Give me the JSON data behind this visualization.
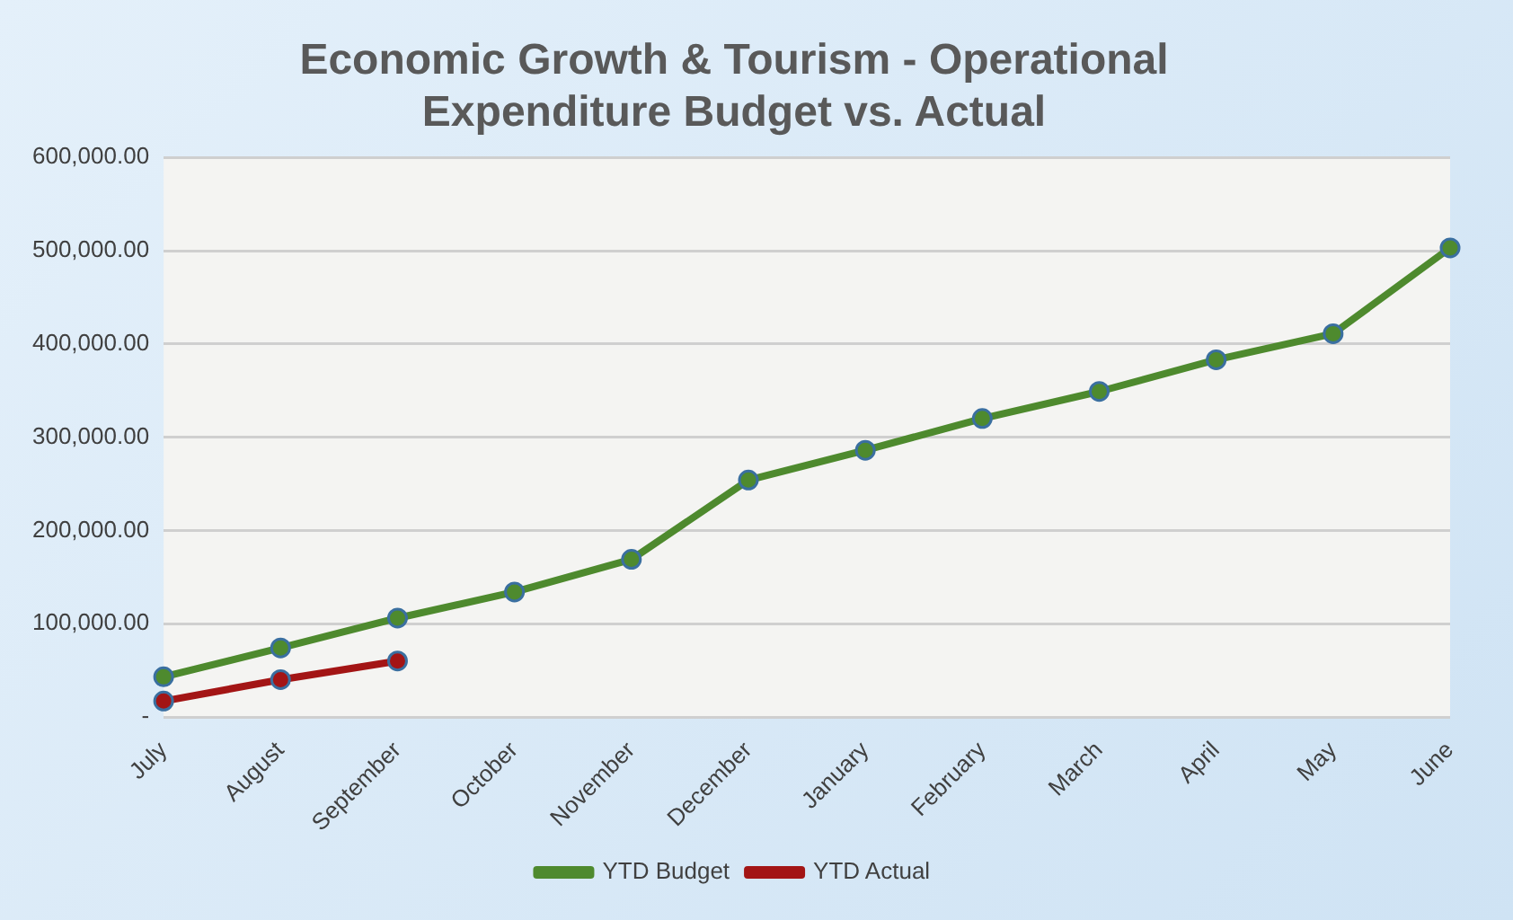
{
  "chart_data": {
    "type": "line",
    "title": "Economic Growth & Tourism - Operational Expenditure Budget vs. Actual",
    "categories": [
      "July",
      "August",
      "September",
      "October",
      "November",
      "December",
      "January",
      "February",
      "March",
      "April",
      "May",
      "June"
    ],
    "series": [
      {
        "name": "YTD Budget",
        "color": "#4e8a2e",
        "values": [
          43000,
          74000,
          106000,
          134000,
          169000,
          254000,
          286000,
          320000,
          349000,
          383000,
          411000,
          503000
        ]
      },
      {
        "name": "YTD Actual",
        "color": "#a31515",
        "values": [
          17000,
          40000,
          60000,
          null,
          null,
          null,
          null,
          null,
          null,
          null,
          null,
          null
        ]
      }
    ],
    "ylim": [
      0,
      600000
    ],
    "yticks": [
      {
        "value": 0,
        "label": "-"
      },
      {
        "value": 100000,
        "label": "100,000.00"
      },
      {
        "value": 200000,
        "label": "200,000.00"
      },
      {
        "value": 300000,
        "label": "300,000.00"
      },
      {
        "value": 400000,
        "label": "400,000.00"
      },
      {
        "value": 500000,
        "label": "500,000.00"
      },
      {
        "value": 600000,
        "label": "600,000.00"
      }
    ],
    "grid": "y",
    "legend": "bottom",
    "marker": "circle",
    "line_style": "solid"
  }
}
